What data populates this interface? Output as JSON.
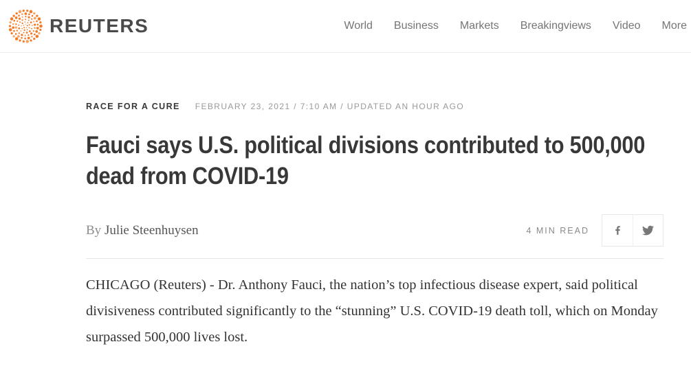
{
  "header": {
    "brand": "REUTERS",
    "nav": [
      {
        "label": "World"
      },
      {
        "label": "Business"
      },
      {
        "label": "Markets"
      },
      {
        "label": "Breakingviews"
      },
      {
        "label": "Video"
      },
      {
        "label": "More"
      }
    ]
  },
  "article": {
    "category": "RACE FOR A CURE",
    "dateline": "FEBRUARY 23, 2021 / 7:10 AM / UPDATED AN HOUR AGO",
    "headline": "Fauci says U.S. political divisions contributed to 500,000 dead from COVID-19",
    "byline_prefix": "By ",
    "author": "Julie Steenhuysen",
    "read_time": "4 MIN READ",
    "body": "CHICAGO (Reuters) - Dr. Anthony Fauci, the nation’s top infectious disease expert, said political divisiveness contributed significantly to the “stunning” U.S. COVID-19 death toll, which on Monday surpassed 500,000 lives lost."
  },
  "icons": {
    "logo": "reuters-dotted-sphere",
    "share": [
      "facebook-icon",
      "twitter-icon"
    ]
  },
  "colors": {
    "brand_orange": "#f37b26",
    "brand_orange_light": "#f8a263",
    "text_dark": "#383838",
    "text_gray": "#757575",
    "text_light_gray": "#999999",
    "divider": "#e6e6e6"
  }
}
